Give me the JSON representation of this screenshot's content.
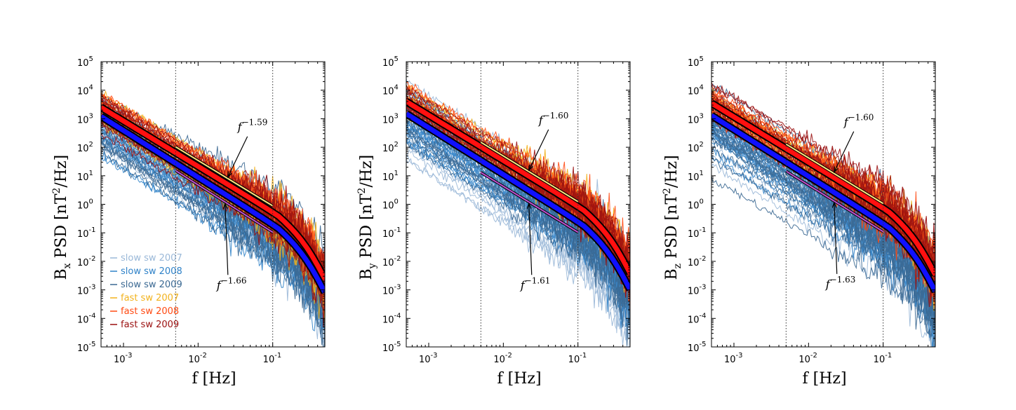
{
  "colors": {
    "slow_2007": "#9ab8d8",
    "slow_2008": "#2f82c8",
    "slow_2009": "#3a6892",
    "fast_2007": "#f2b21c",
    "fast_2008": "#ff4a12",
    "fast_2009": "#9a0f0f",
    "fast_mean": "#ff1010",
    "slow_mean": "#1010ff",
    "fit_fast": "#ffe680",
    "fit_slow": "#c050d0"
  },
  "legend": {
    "items": [
      {
        "label": "slow sw 2007",
        "color": "#9ab8d8"
      },
      {
        "label": "slow sw 2008",
        "color": "#2f82c8"
      },
      {
        "label": "slow sw 2009",
        "color": "#3a6892"
      },
      {
        "label": "fast sw 2007",
        "color": "#f2b21c"
      },
      {
        "label": "fast sw 2008",
        "color": "#ff4a12"
      },
      {
        "label": "fast sw 2009",
        "color": "#9a0f0f"
      }
    ]
  },
  "chart_data": [
    {
      "type": "line",
      "panel": "Bx",
      "xlabel_main": "f",
      "xlabel_unit": "[Hz]",
      "ylabel_main": "B",
      "ylabel_sub": "x",
      "ylabel_rest": " PSD [nT",
      "ylabel_sup": "2",
      "ylabel_end": "/Hz]",
      "xscale": "log",
      "yscale": "log",
      "xlim": [
        0.0005,
        0.5
      ],
      "ylim": [
        1e-05,
        100000
      ],
      "xticks": [
        {
          "base": "10",
          "exp": "-3"
        },
        {
          "base": "10",
          "exp": "-2"
        },
        {
          "base": "10",
          "exp": "-1"
        }
      ],
      "yticks": [
        {
          "base": "10",
          "exp": "-5"
        },
        {
          "base": "10",
          "exp": "-4"
        },
        {
          "base": "10",
          "exp": "-3"
        },
        {
          "base": "10",
          "exp": "-2"
        },
        {
          "base": "10",
          "exp": "-1"
        },
        {
          "base": "10",
          "exp": "0"
        },
        {
          "base": "10",
          "exp": "1"
        },
        {
          "base": "10",
          "exp": "2"
        },
        {
          "base": "10",
          "exp": "3"
        },
        {
          "base": "10",
          "exp": "4"
        },
        {
          "base": "10",
          "exp": "5"
        }
      ],
      "vlines": [
        0.005,
        0.1
      ],
      "mean_fast": {
        "f0": 0.0005,
        "p0": 2500
      },
      "mean_slow": {
        "f0": 0.0005,
        "p0": 1200
      },
      "fit_fast": {
        "slope": -1.59,
        "label_base": "f",
        "label_exp": "−1.59",
        "point_f": 0.025,
        "point_p": 8
      },
      "fit_slow": {
        "slope": -1.66,
        "label_base": "f",
        "label_exp": "−1.66",
        "point_f": 0.023,
        "point_p": 1.2
      },
      "show_legend": true
    },
    {
      "type": "line",
      "panel": "By",
      "xlabel_main": "f",
      "xlabel_unit": "[Hz]",
      "ylabel_main": "B",
      "ylabel_sub": "y",
      "ylabel_rest": " PSD [nT",
      "ylabel_sup": "2",
      "ylabel_end": "/Hz]",
      "xscale": "log",
      "yscale": "log",
      "xlim": [
        0.0005,
        0.5
      ],
      "ylim": [
        1e-05,
        100000
      ],
      "xticks": [
        {
          "base": "10",
          "exp": "-3"
        },
        {
          "base": "10",
          "exp": "-2"
        },
        {
          "base": "10",
          "exp": "-1"
        }
      ],
      "yticks": [
        {
          "base": "10",
          "exp": "-5"
        },
        {
          "base": "10",
          "exp": "-4"
        },
        {
          "base": "10",
          "exp": "-3"
        },
        {
          "base": "10",
          "exp": "-2"
        },
        {
          "base": "10",
          "exp": "-1"
        },
        {
          "base": "10",
          "exp": "0"
        },
        {
          "base": "10",
          "exp": "1"
        },
        {
          "base": "10",
          "exp": "2"
        },
        {
          "base": "10",
          "exp": "3"
        },
        {
          "base": "10",
          "exp": "4"
        },
        {
          "base": "10",
          "exp": "5"
        }
      ],
      "vlines": [
        0.005,
        0.1
      ],
      "mean_fast": {
        "f0": 0.0005,
        "p0": 4000
      },
      "mean_slow": {
        "f0": 0.0005,
        "p0": 1500
      },
      "fit_fast": {
        "slope": -1.6,
        "label_base": "f",
        "label_exp": "−1.60",
        "point_f": 0.022,
        "point_p": 14
      },
      "fit_slow": {
        "slope": -1.61,
        "label_base": "f",
        "label_exp": "−1.61",
        "point_f": 0.022,
        "point_p": 1.2
      },
      "show_legend": false
    },
    {
      "type": "line",
      "panel": "Bz",
      "xlabel_main": "f",
      "xlabel_unit": "[Hz]",
      "ylabel_main": "B",
      "ylabel_sub": "z",
      "ylabel_rest": " PSD [nT",
      "ylabel_sup": "2",
      "ylabel_end": "/Hz]",
      "xscale": "log",
      "yscale": "log",
      "xlim": [
        0.0005,
        0.5
      ],
      "ylim": [
        1e-05,
        100000
      ],
      "xticks": [
        {
          "base": "10",
          "exp": "-3"
        },
        {
          "base": "10",
          "exp": "-2"
        },
        {
          "base": "10",
          "exp": "-1"
        }
      ],
      "yticks": [
        {
          "base": "10",
          "exp": "-5"
        },
        {
          "base": "10",
          "exp": "-4"
        },
        {
          "base": "10",
          "exp": "-3"
        },
        {
          "base": "10",
          "exp": "-2"
        },
        {
          "base": "10",
          "exp": "-1"
        },
        {
          "base": "10",
          "exp": "0"
        },
        {
          "base": "10",
          "exp": "1"
        },
        {
          "base": "10",
          "exp": "2"
        },
        {
          "base": "10",
          "exp": "3"
        },
        {
          "base": "10",
          "exp": "4"
        },
        {
          "base": "10",
          "exp": "5"
        }
      ],
      "vlines": [
        0.005,
        0.1
      ],
      "mean_fast": {
        "f0": 0.0005,
        "p0": 3500
      },
      "mean_slow": {
        "f0": 0.0005,
        "p0": 1300
      },
      "fit_fast": {
        "slope": -1.6,
        "label_base": "f",
        "label_exp": "−1.60",
        "point_f": 0.022,
        "point_p": 12
      },
      "fit_slow": {
        "slope": -1.63,
        "label_base": "f",
        "label_exp": "−1.63",
        "point_f": 0.022,
        "point_p": 1.3
      },
      "show_legend": false
    }
  ]
}
